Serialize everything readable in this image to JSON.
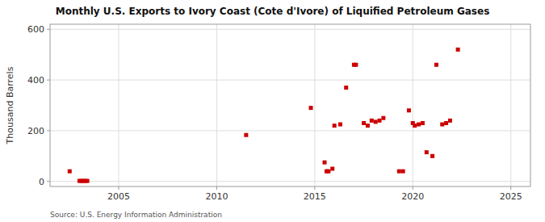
{
  "chart_data": {
    "type": "scatter",
    "title": "Monthly U.S. Exports to Ivory Coast (Cote d'Ivore) of Liquified Petroleum Gases",
    "y_label": "Thousand Barrels",
    "annotations": [
      "Source: U.S. Energy Information Administration"
    ],
    "color": "#cc0000",
    "marker": "square",
    "grid": true,
    "xlim": [
      2001.5,
      2026
    ],
    "ylim": [
      -20,
      620
    ],
    "xticks": [
      2005,
      2010,
      2015,
      2020,
      2025
    ],
    "yticks": [
      0,
      200,
      400,
      600
    ],
    "x": [
      2002.5,
      2003.0,
      2003.1,
      2003.2,
      2003.3,
      2003.4,
      2011.5,
      2014.8,
      2015.5,
      2015.6,
      2015.7,
      2015.9,
      2016.0,
      2016.3,
      2016.6,
      2017.0,
      2017.1,
      2017.5,
      2017.7,
      2017.9,
      2018.1,
      2018.3,
      2018.5,
      2019.3,
      2019.5,
      2019.8,
      2020.0,
      2020.1,
      2020.3,
      2020.5,
      2020.7,
      2021.0,
      2021.2,
      2021.5,
      2021.7,
      2021.9,
      2022.3
    ],
    "values": [
      40,
      2,
      2,
      2,
      2,
      2,
      183,
      290,
      75,
      40,
      40,
      50,
      220,
      225,
      370,
      460,
      460,
      230,
      220,
      240,
      235,
      240,
      250,
      40,
      40,
      280,
      230,
      220,
      225,
      230,
      115,
      100,
      460,
      225,
      230,
      240,
      520
    ]
  }
}
